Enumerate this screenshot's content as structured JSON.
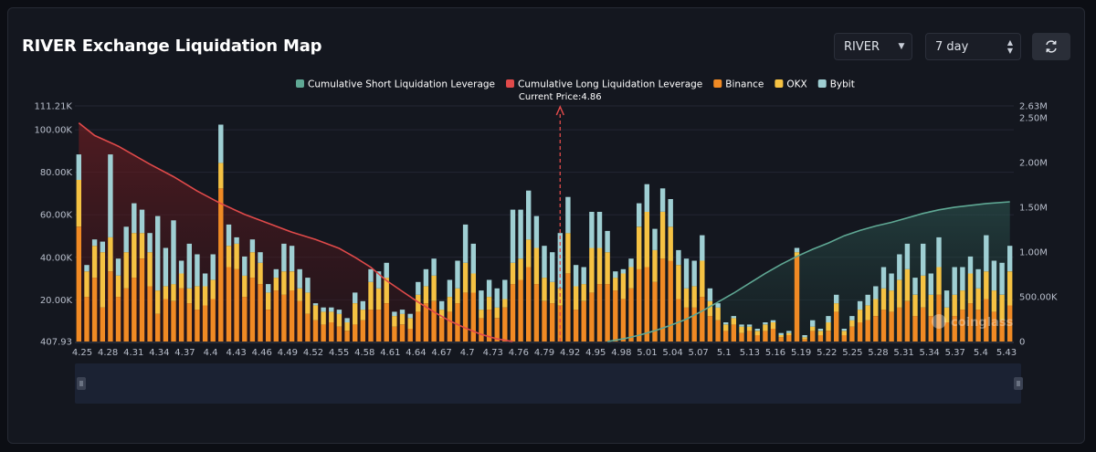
{
  "header": {
    "title": "RIVER Exchange Liquidation Map",
    "symbol_select": "RIVER",
    "range_select": "7 day"
  },
  "chart_data": {
    "type": "bar",
    "current_price_label": "Current Price:4.86",
    "current_price": 4.86,
    "legend": [
      {
        "name": "Cumulative Short Liquidation Leverage",
        "color": "#5fa894"
      },
      {
        "name": "Cumulative Long Liquidation Leverage",
        "color": "#e04a4a"
      },
      {
        "name": "Binance",
        "color": "#f08a24"
      },
      {
        "name": "OKX",
        "color": "#f5c243"
      },
      {
        "name": "Bybit",
        "color": "#9fcfd3"
      }
    ],
    "y_left_ticks": [
      "111.21K",
      "100.00K",
      "80.00K",
      "60.00K",
      "40.00K",
      "20.00K",
      "407.93"
    ],
    "y_left_range": [
      407.93,
      111210
    ],
    "y_right_ticks": [
      "2.63M",
      "2.50M",
      "2.00M",
      "1.50M",
      "1.00M",
      "500.00K",
      "0"
    ],
    "y_right_range": [
      0,
      2630000
    ],
    "x_ticks": [
      "4.25",
      "4.28",
      "4.31",
      "4.34",
      "4.37",
      "4.4",
      "4.43",
      "4.46",
      "4.49",
      "4.52",
      "4.55",
      "4.58",
      "4.61",
      "4.64",
      "4.67",
      "4.7",
      "4.73",
      "4.76",
      "4.79",
      "4.92",
      "4.95",
      "4.98",
      "5.01",
      "5.04",
      "5.07",
      "5.1",
      "5.13",
      "5.16",
      "5.19",
      "5.22",
      "5.25",
      "5.28",
      "5.31",
      "5.34",
      "5.37",
      "5.4",
      "5.43"
    ],
    "watermark": "coinglass",
    "bars": [
      [
        4.25,
        54000,
        22000,
        12000
      ],
      [
        4.26,
        21000,
        12000,
        3000
      ],
      [
        4.27,
        30000,
        15000,
        3000
      ],
      [
        4.28,
        16000,
        26000,
        5000
      ],
      [
        4.29,
        33000,
        16000,
        39000
      ],
      [
        4.3,
        21000,
        10000,
        8000
      ],
      [
        4.31,
        25000,
        17000,
        12000
      ],
      [
        4.32,
        30000,
        21000,
        14000
      ],
      [
        4.33,
        39000,
        12000,
        11000
      ],
      [
        4.34,
        26000,
        16000,
        9000
      ],
      [
        4.35,
        13000,
        11000,
        35000
      ],
      [
        4.36,
        20000,
        6000,
        18000
      ],
      [
        4.37,
        19000,
        8000,
        30000
      ],
      [
        4.38,
        25000,
        7000,
        6000
      ],
      [
        4.39,
        18000,
        7000,
        21000
      ],
      [
        4.4,
        15000,
        11000,
        15000
      ],
      [
        4.41,
        17000,
        9000,
        6000
      ],
      [
        4.42,
        20000,
        9000,
        12000
      ],
      [
        4.43,
        72000,
        12000,
        18000
      ],
      [
        4.44,
        35000,
        10000,
        10000
      ],
      [
        4.45,
        34000,
        12000,
        3000
      ],
      [
        4.46,
        21000,
        10000,
        9000
      ],
      [
        4.47,
        30000,
        12000,
        6000
      ],
      [
        4.48,
        27000,
        10000,
        5000
      ],
      [
        4.49,
        15000,
        8000,
        4000
      ],
      [
        4.5,
        24000,
        6000,
        4000
      ],
      [
        4.51,
        22000,
        11000,
        13000
      ],
      [
        4.52,
        24000,
        9000,
        12000
      ],
      [
        4.53,
        19000,
        6000,
        9000
      ],
      [
        4.54,
        13000,
        10000,
        7000
      ],
      [
        4.55,
        10000,
        7000,
        1000
      ],
      [
        4.56,
        8000,
        6000,
        2000
      ],
      [
        4.57,
        9000,
        5000,
        2000
      ],
      [
        4.58,
        7000,
        6000,
        2000
      ],
      [
        4.59,
        5000,
        4000,
        2000
      ],
      [
        4.6,
        8000,
        10000,
        5000
      ],
      [
        4.61,
        10000,
        5000,
        4000
      ],
      [
        4.62,
        15000,
        13000,
        6000
      ],
      [
        4.63,
        15000,
        10000,
        8000
      ],
      [
        4.64,
        18000,
        12000,
        7000
      ],
      [
        4.65,
        7000,
        5000,
        2000
      ],
      [
        4.66,
        8000,
        5000,
        2000
      ],
      [
        4.67,
        6000,
        5000,
        2000
      ],
      [
        4.68,
        14000,
        8000,
        6000
      ],
      [
        4.69,
        18000,
        8000,
        8000
      ],
      [
        4.7,
        19000,
        12000,
        8000
      ],
      [
        4.71,
        11000,
        4000,
        4000
      ],
      [
        4.72,
        14000,
        7000,
        8000
      ],
      [
        4.73,
        18000,
        7000,
        13000
      ],
      [
        4.74,
        23000,
        14000,
        18000
      ],
      [
        4.75,
        23000,
        9000,
        14000
      ],
      [
        4.76,
        11000,
        4000,
        9000
      ],
      [
        4.77,
        15000,
        6000,
        8000
      ],
      [
        4.78,
        11000,
        5000,
        9000
      ],
      [
        4.79,
        16000,
        4000,
        9000
      ],
      [
        4.8,
        27000,
        10000,
        25000
      ],
      [
        4.81,
        29000,
        10000,
        23000
      ],
      [
        4.82,
        35000,
        13000,
        23000
      ],
      [
        4.83,
        27000,
        17000,
        15000
      ],
      [
        4.84,
        19000,
        11000,
        15000
      ],
      [
        4.85,
        18000,
        10000,
        14000
      ],
      [
        4.86,
        17000,
        8000,
        26000
      ],
      [
        4.87,
        32000,
        19000,
        17000
      ],
      [
        4.88,
        15000,
        11000,
        10000
      ],
      [
        4.89,
        19000,
        8000,
        8000
      ],
      [
        4.9,
        23000,
        21000,
        17000
      ],
      [
        4.91,
        27000,
        17000,
        17000
      ],
      [
        4.92,
        27000,
        15000,
        10000
      ],
      [
        4.93,
        24000,
        6000,
        3000
      ],
      [
        4.94,
        20000,
        12000,
        2000
      ],
      [
        4.95,
        25000,
        10000,
        4000
      ],
      [
        4.96,
        34000,
        20000,
        11000
      ],
      [
        4.97,
        35000,
        26000,
        13000
      ],
      [
        4.98,
        28000,
        15000,
        10000
      ],
      [
        4.99,
        39000,
        22000,
        11000
      ],
      [
        5.0,
        38000,
        16000,
        13000
      ],
      [
        5.01,
        20000,
        16000,
        7000
      ],
      [
        5.02,
        16000,
        9000,
        14000
      ],
      [
        5.03,
        16000,
        10000,
        12000
      ],
      [
        5.04,
        21000,
        17000,
        12000
      ],
      [
        5.05,
        12000,
        7000,
        6000
      ],
      [
        5.06,
        10000,
        6000,
        2000
      ],
      [
        5.07,
        5000,
        3000,
        1000
      ],
      [
        5.08,
        8000,
        3000,
        1000
      ],
      [
        5.09,
        4000,
        3000,
        1000
      ],
      [
        5.1,
        5000,
        2000,
        1000
      ],
      [
        5.11,
        3000,
        2000,
        1000
      ],
      [
        5.12,
        5000,
        3000,
        1000
      ],
      [
        5.13,
        6000,
        3000,
        1000
      ],
      [
        5.14,
        2000,
        1000,
        1000
      ],
      [
        5.15,
        3000,
        1000,
        1000
      ],
      [
        5.16,
        40000,
        2000,
        2000
      ],
      [
        5.17,
        1000,
        1000,
        1000
      ],
      [
        5.18,
        5000,
        2000,
        3000
      ],
      [
        5.19,
        3000,
        2000,
        1000
      ],
      [
        5.2,
        5000,
        4000,
        3000
      ],
      [
        5.21,
        14000,
        4000,
        4000
      ],
      [
        5.22,
        3000,
        2000,
        1000
      ],
      [
        5.23,
        7000,
        3000,
        2000
      ],
      [
        5.24,
        9000,
        6000,
        4000
      ],
      [
        5.25,
        10000,
        7000,
        5000
      ],
      [
        5.26,
        12000,
        8000,
        6000
      ],
      [
        5.27,
        15000,
        10000,
        10000
      ],
      [
        5.28,
        14000,
        10000,
        8000
      ],
      [
        5.29,
        16000,
        13000,
        12000
      ],
      [
        5.3,
        19000,
        15000,
        12000
      ],
      [
        5.31,
        12000,
        10000,
        8000
      ],
      [
        5.32,
        16000,
        15000,
        15000
      ],
      [
        5.33,
        12000,
        10000,
        10000
      ],
      [
        5.34,
        22000,
        13000,
        14000
      ],
      [
        5.35,
        9000,
        7000,
        8000
      ],
      [
        5.36,
        12000,
        10000,
        13000
      ],
      [
        5.37,
        15000,
        9000,
        11000
      ],
      [
        5.38,
        18000,
        14000,
        8000
      ],
      [
        5.39,
        15000,
        10000,
        9000
      ],
      [
        5.4,
        20000,
        13000,
        17000
      ],
      [
        5.41,
        14000,
        10000,
        14000
      ],
      [
        5.42,
        10000,
        12000,
        15000
      ],
      [
        5.43,
        17000,
        16000,
        12000
      ]
    ],
    "cumulative_long": [
      [
        4.25,
        2440000
      ],
      [
        4.27,
        2300000
      ],
      [
        4.3,
        2180000
      ],
      [
        4.34,
        1980000
      ],
      [
        4.37,
        1840000
      ],
      [
        4.4,
        1680000
      ],
      [
        4.43,
        1540000
      ],
      [
        4.46,
        1420000
      ],
      [
        4.49,
        1320000
      ],
      [
        4.52,
        1220000
      ],
      [
        4.55,
        1140000
      ],
      [
        4.58,
        1040000
      ],
      [
        4.6,
        940000
      ],
      [
        4.62,
        830000
      ],
      [
        4.64,
        680000
      ],
      [
        4.66,
        560000
      ],
      [
        4.68,
        440000
      ],
      [
        4.7,
        330000
      ],
      [
        4.72,
        230000
      ],
      [
        4.74,
        150000
      ],
      [
        4.76,
        80000
      ],
      [
        4.78,
        30000
      ],
      [
        4.8,
        0
      ]
    ],
    "cumulative_short": [
      [
        4.92,
        0
      ],
      [
        4.94,
        30000
      ],
      [
        4.96,
        70000
      ],
      [
        4.98,
        120000
      ],
      [
        5.0,
        180000
      ],
      [
        5.02,
        250000
      ],
      [
        5.04,
        340000
      ],
      [
        5.06,
        440000
      ],
      [
        5.08,
        540000
      ],
      [
        5.1,
        650000
      ],
      [
        5.12,
        760000
      ],
      [
        5.14,
        860000
      ],
      [
        5.16,
        950000
      ],
      [
        5.18,
        1030000
      ],
      [
        5.2,
        1100000
      ],
      [
        5.22,
        1180000
      ],
      [
        5.24,
        1240000
      ],
      [
        5.26,
        1290000
      ],
      [
        5.28,
        1330000
      ],
      [
        5.3,
        1380000
      ],
      [
        5.32,
        1430000
      ],
      [
        5.34,
        1470000
      ],
      [
        5.36,
        1500000
      ],
      [
        5.38,
        1520000
      ],
      [
        5.4,
        1540000
      ],
      [
        5.43,
        1560000
      ]
    ]
  }
}
